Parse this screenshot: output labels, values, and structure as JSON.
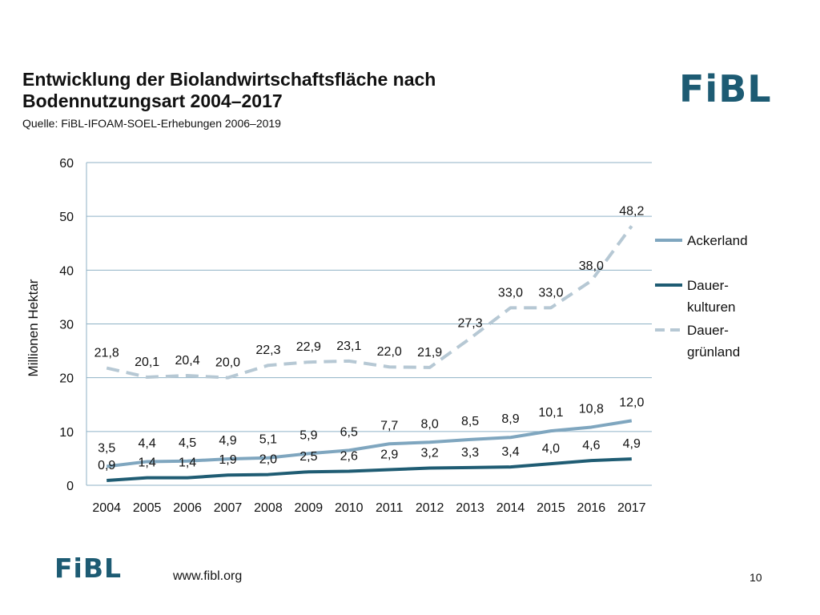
{
  "header": {
    "title_line1": "Entwicklung der Biolandwirtschaftsfläche nach",
    "title_line2": "Bodennutzungsart 2004–2017",
    "source": "Quelle: FiBL-IFOAM-SOEL-Erhebungen 2006–2019"
  },
  "logo": {
    "text": "FiBL",
    "color": "#1d5b73"
  },
  "footer": {
    "url": "www.fibl.org",
    "page": "10"
  },
  "chart_data": {
    "type": "line",
    "title": "Entwicklung der Biolandwirtschaftsfläche nach Bodennutzungsart 2004–2017",
    "xlabel": "",
    "ylabel": "Millionen Hektar",
    "ylim": [
      0,
      60
    ],
    "yticks": [
      0,
      10,
      20,
      30,
      40,
      50,
      60
    ],
    "grid": true,
    "legend_position": "right",
    "categories": [
      "2004",
      "2005",
      "2006",
      "2007",
      "2008",
      "2009",
      "2010",
      "2011",
      "2012",
      "2013",
      "2014",
      "2015",
      "2016",
      "2017"
    ],
    "series": [
      {
        "name": "Ackerland",
        "legend_lines": [
          "Ackerland"
        ],
        "color": "#7fa6bf",
        "dash": "solid",
        "values": [
          3.5,
          4.4,
          4.5,
          4.9,
          5.1,
          5.9,
          6.5,
          7.7,
          8.0,
          8.5,
          8.9,
          10.1,
          10.8,
          12.0
        ],
        "labels": [
          "3,5",
          "4,4",
          "4,5",
          "4,9",
          "5,1",
          "5,9",
          "6,5",
          "7,7",
          "8,0",
          "8,5",
          "8,9",
          "10,1",
          "10,8",
          "12,0"
        ]
      },
      {
        "name": "Dauerkulturen",
        "legend_lines": [
          "Dauer-",
          "kulturen"
        ],
        "color": "#1f5c73",
        "dash": "solid",
        "values": [
          0.9,
          1.4,
          1.4,
          1.9,
          2.0,
          2.5,
          2.6,
          2.9,
          3.2,
          3.3,
          3.4,
          4.0,
          4.6,
          4.9
        ],
        "labels": [
          "0,9",
          "1,4",
          "1,4",
          "1,9",
          "2,0",
          "2,5",
          "2,6",
          "2,9",
          "3,2",
          "3,3",
          "3,4",
          "4,0",
          "4,6",
          "4,9"
        ]
      },
      {
        "name": "Dauergrünland",
        "legend_lines": [
          "Dauer-",
          "grünland"
        ],
        "color": "#b6c8d4",
        "dash": "dashed",
        "values": [
          21.8,
          20.1,
          20.4,
          20.0,
          22.3,
          22.9,
          23.1,
          22.0,
          21.9,
          27.3,
          33.0,
          33.0,
          38.0,
          48.2
        ],
        "labels": [
          "21,8",
          "20,1",
          "20,4",
          "20,0",
          "22,3",
          "22,9",
          "23,1",
          "22,0",
          "21,9",
          "27,3",
          "33,0",
          "33,0",
          "38,0",
          "48,2"
        ]
      }
    ]
  }
}
